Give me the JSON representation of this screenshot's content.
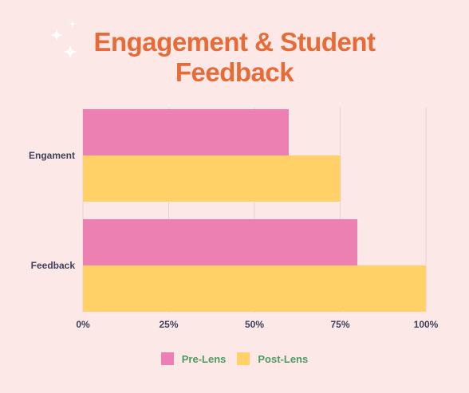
{
  "title_line1": "Engagement & Student",
  "title_line2": "Feedback",
  "colors": {
    "background": "#fde8e8",
    "title": "#e76b37",
    "pre": "#ec80b3",
    "post": "#ffd166",
    "legend_text": "#4e9a63"
  },
  "chart_data": {
    "type": "bar",
    "orientation": "horizontal",
    "categories": [
      "Engament",
      "Feedback"
    ],
    "series": [
      {
        "name": "Pre-Lens",
        "values": [
          60,
          80
        ]
      },
      {
        "name": "Post-Lens",
        "values": [
          75,
          100
        ]
      }
    ],
    "xlim": [
      0,
      100
    ],
    "xticks": [
      "0%",
      "25%",
      "50%",
      "75%",
      "100%"
    ],
    "grid": true,
    "legend_position": "bottom"
  }
}
